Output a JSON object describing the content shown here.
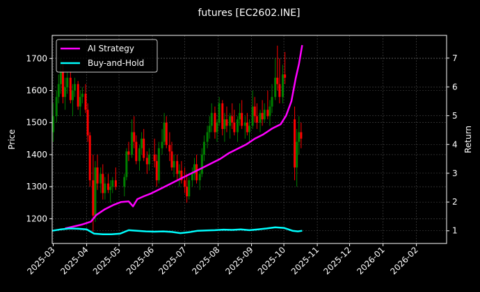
{
  "chart_data": {
    "type": "line",
    "title": "futures [EC2602.INE]",
    "ylabel": "Price",
    "y2label": "Return",
    "x_ticks": [
      "2025-03",
      "2025-04",
      "2025-05",
      "2025-06",
      "2025-07",
      "2025-08",
      "2025-09",
      "2025-10",
      "2025-11",
      "2025-12",
      "2026-01",
      "2026-02"
    ],
    "xlim": [
      "2025-02-28",
      "2026-03-01"
    ],
    "ylim": [
      1123,
      1772
    ],
    "y_ticks": [
      1200,
      1300,
      1400,
      1500,
      1600,
      1700
    ],
    "y2lim": [
      0.56,
      7.79
    ],
    "y2_ticks": [
      1,
      2,
      3,
      4,
      5,
      6,
      7
    ],
    "grid": true,
    "legend": "top-left",
    "candle_colors": {
      "up": "#008000",
      "down": "#ff0000"
    },
    "candles_ohlc": {
      "description_keys": [
        "date",
        "open",
        "high",
        "low",
        "close"
      ],
      "points": [
        [
          "2025-03-01",
          1470,
          1560,
          1440,
          1520
        ],
        [
          "2025-03-04",
          1520,
          1600,
          1500,
          1580
        ],
        [
          "2025-03-06",
          1580,
          1650,
          1560,
          1620
        ],
        [
          "2025-03-08",
          1620,
          1700,
          1590,
          1660
        ],
        [
          "2025-03-10",
          1660,
          1690,
          1560,
          1580
        ],
        [
          "2025-03-12",
          1580,
          1640,
          1540,
          1610
        ],
        [
          "2025-03-14",
          1610,
          1660,
          1590,
          1640
        ],
        [
          "2025-03-17",
          1640,
          1660,
          1560,
          1570
        ],
        [
          "2025-03-19",
          1570,
          1620,
          1520,
          1600
        ],
        [
          "2025-03-21",
          1600,
          1640,
          1580,
          1620
        ],
        [
          "2025-03-24",
          1620,
          1630,
          1540,
          1550
        ],
        [
          "2025-03-26",
          1550,
          1600,
          1520,
          1580
        ],
        [
          "2025-03-28",
          1580,
          1610,
          1560,
          1590
        ],
        [
          "2025-03-31",
          1590,
          1620,
          1530,
          1540
        ],
        [
          "2025-04-02",
          1540,
          1560,
          1440,
          1460
        ],
        [
          "2025-04-04",
          1460,
          1470,
          1300,
          1320
        ],
        [
          "2025-04-07",
          1320,
          1400,
          1160,
          1210
        ],
        [
          "2025-04-09",
          1210,
          1380,
          1190,
          1360
        ],
        [
          "2025-04-11",
          1360,
          1400,
          1290,
          1310
        ],
        [
          "2025-04-14",
          1310,
          1360,
          1280,
          1340
        ],
        [
          "2025-04-16",
          1340,
          1370,
          1260,
          1280
        ],
        [
          "2025-04-18",
          1280,
          1330,
          1260,
          1310
        ],
        [
          "2025-04-21",
          1310,
          1340,
          1280,
          1290
        ],
        [
          "2025-04-23",
          1290,
          1320,
          1250,
          1300
        ],
        [
          "2025-04-25",
          1300,
          1330,
          1280,
          1320
        ],
        [
          "2025-04-28",
          1320,
          1360,
          1290,
          1300
        ],
        [
          "2025-05-06",
          1300,
          1340,
          1270,
          1330
        ],
        [
          "2025-05-08",
          1330,
          1420,
          1320,
          1410
        ],
        [
          "2025-05-10",
          1410,
          1440,
          1380,
          1400
        ],
        [
          "2025-05-13",
          1400,
          1510,
          1390,
          1470
        ],
        [
          "2025-05-15",
          1470,
          1520,
          1420,
          1440
        ],
        [
          "2025-05-17",
          1440,
          1460,
          1370,
          1380
        ],
        [
          "2025-05-20",
          1380,
          1430,
          1350,
          1420
        ],
        [
          "2025-05-22",
          1420,
          1470,
          1400,
          1450
        ],
        [
          "2025-05-24",
          1450,
          1480,
          1380,
          1390
        ],
        [
          "2025-05-27",
          1390,
          1410,
          1340,
          1370
        ],
        [
          "2025-05-29",
          1370,
          1420,
          1350,
          1400
        ],
        [
          "2025-06-03",
          1400,
          1450,
          1360,
          1380
        ],
        [
          "2025-06-05",
          1380,
          1400,
          1300,
          1320
        ],
        [
          "2025-06-07",
          1320,
          1440,
          1310,
          1420
        ],
        [
          "2025-06-10",
          1420,
          1480,
          1400,
          1440
        ],
        [
          "2025-06-12",
          1440,
          1530,
          1430,
          1500
        ],
        [
          "2025-06-14",
          1500,
          1520,
          1420,
          1430
        ],
        [
          "2025-06-17",
          1430,
          1470,
          1380,
          1410
        ],
        [
          "2025-06-19",
          1410,
          1440,
          1350,
          1360
        ],
        [
          "2025-06-21",
          1360,
          1400,
          1330,
          1380
        ],
        [
          "2025-06-24",
          1380,
          1400,
          1320,
          1340
        ],
        [
          "2025-06-26",
          1340,
          1370,
          1300,
          1350
        ],
        [
          "2025-06-28",
          1350,
          1380,
          1310,
          1320
        ],
        [
          "2025-07-01",
          1320,
          1360,
          1280,
          1300
        ],
        [
          "2025-07-03",
          1300,
          1340,
          1250,
          1270
        ],
        [
          "2025-07-05",
          1270,
          1330,
          1260,
          1320
        ],
        [
          "2025-07-08",
          1320,
          1360,
          1300,
          1340
        ],
        [
          "2025-07-10",
          1340,
          1390,
          1320,
          1370
        ],
        [
          "2025-07-12",
          1370,
          1400,
          1310,
          1320
        ],
        [
          "2025-07-15",
          1320,
          1350,
          1290,
          1340
        ],
        [
          "2025-07-17",
          1340,
          1420,
          1330,
          1400
        ],
        [
          "2025-07-19",
          1400,
          1460,
          1380,
          1440
        ],
        [
          "2025-07-22",
          1440,
          1490,
          1420,
          1470
        ],
        [
          "2025-07-24",
          1470,
          1520,
          1450,
          1490
        ],
        [
          "2025-07-26",
          1490,
          1560,
          1470,
          1530
        ],
        [
          "2025-07-29",
          1530,
          1550,
          1450,
          1470
        ],
        [
          "2025-07-31",
          1470,
          1510,
          1440,
          1500
        ],
        [
          "2025-08-02",
          1500,
          1580,
          1490,
          1560
        ],
        [
          "2025-08-05",
          1560,
          1570,
          1460,
          1480
        ],
        [
          "2025-08-07",
          1480,
          1530,
          1440,
          1510
        ],
        [
          "2025-08-09",
          1510,
          1550,
          1470,
          1490
        ],
        [
          "2025-08-12",
          1490,
          1530,
          1450,
          1520
        ],
        [
          "2025-08-14",
          1520,
          1560,
          1480,
          1500
        ],
        [
          "2025-08-16",
          1500,
          1540,
          1460,
          1470
        ],
        [
          "2025-08-19",
          1470,
          1520,
          1440,
          1510
        ],
        [
          "2025-08-21",
          1510,
          1560,
          1490,
          1530
        ],
        [
          "2025-08-23",
          1530,
          1570,
          1480,
          1490
        ],
        [
          "2025-08-26",
          1490,
          1520,
          1450,
          1500
        ],
        [
          "2025-08-28",
          1500,
          1530,
          1460,
          1470
        ],
        [
          "2025-08-30",
          1470,
          1510,
          1440,
          1490
        ],
        [
          "2025-09-02",
          1490,
          1600,
          1480,
          1550
        ],
        [
          "2025-09-04",
          1550,
          1580,
          1500,
          1520
        ],
        [
          "2025-09-06",
          1520,
          1560,
          1480,
          1500
        ],
        [
          "2025-09-09",
          1500,
          1540,
          1470,
          1530
        ],
        [
          "2025-09-11",
          1530,
          1570,
          1490,
          1510
        ],
        [
          "2025-09-13",
          1510,
          1560,
          1500,
          1540
        ],
        [
          "2025-09-16",
          1540,
          1600,
          1510,
          1520
        ],
        [
          "2025-09-18",
          1520,
          1570,
          1490,
          1550
        ],
        [
          "2025-09-20",
          1550,
          1620,
          1530,
          1580
        ],
        [
          "2025-09-23",
          1580,
          1700,
          1570,
          1640
        ],
        [
          "2025-09-25",
          1640,
          1740,
          1600,
          1620
        ],
        [
          "2025-09-27",
          1620,
          1700,
          1560,
          1580
        ],
        [
          "2025-09-30",
          1580,
          1680,
          1560,
          1650
        ],
        [
          "2025-10-02",
          1650,
          1720,
          1620,
          1640
        ],
        [
          "2025-10-11",
          1510,
          1550,
          1320,
          1360
        ],
        [
          "2025-10-13",
          1360,
          1480,
          1300,
          1440
        ],
        [
          "2025-10-15",
          1440,
          1520,
          1400,
          1470
        ],
        [
          "2025-10-17",
          1470,
          1500,
          1420,
          1450
        ]
      ]
    },
    "series": [
      {
        "name": "AI Strategy",
        "color": "#ff00ff",
        "axis": "right",
        "x": [
          "2025-03-12",
          "2025-03-20",
          "2025-03-28",
          "2025-04-05",
          "2025-04-10",
          "2025-04-18",
          "2025-04-26",
          "2025-05-03",
          "2025-05-10",
          "2025-05-14",
          "2025-05-18",
          "2025-05-24",
          "2025-05-31",
          "2025-06-08",
          "2025-06-16",
          "2025-06-24",
          "2025-07-02",
          "2025-07-10",
          "2025-07-18",
          "2025-07-26",
          "2025-08-03",
          "2025-08-11",
          "2025-08-19",
          "2025-08-27",
          "2025-09-04",
          "2025-09-12",
          "2025-09-20",
          "2025-09-28",
          "2025-10-03",
          "2025-10-08",
          "2025-10-12",
          "2025-10-15",
          "2025-10-18"
        ],
        "y": [
          1.08,
          1.15,
          1.22,
          1.32,
          1.55,
          1.75,
          1.9,
          2.0,
          2.02,
          1.85,
          2.1,
          2.2,
          2.3,
          2.45,
          2.6,
          2.75,
          2.9,
          3.05,
          3.2,
          3.35,
          3.5,
          3.7,
          3.85,
          4.0,
          4.2,
          4.35,
          4.55,
          4.7,
          5.0,
          5.5,
          6.3,
          6.8,
          7.45
        ]
      },
      {
        "name": "Buy-and-Hold",
        "color": "#00ffff",
        "axis": "right",
        "x": [
          "2025-02-28",
          "2025-03-08",
          "2025-03-16",
          "2025-03-24",
          "2025-04-01",
          "2025-04-08",
          "2025-04-16",
          "2025-04-24",
          "2025-05-02",
          "2025-05-10",
          "2025-05-18",
          "2025-05-26",
          "2025-06-03",
          "2025-06-11",
          "2025-06-19",
          "2025-06-27",
          "2025-07-05",
          "2025-07-13",
          "2025-07-21",
          "2025-07-29",
          "2025-08-06",
          "2025-08-14",
          "2025-08-22",
          "2025-08-30",
          "2025-09-07",
          "2025-09-15",
          "2025-09-23",
          "2025-10-01",
          "2025-10-09",
          "2025-10-14",
          "2025-10-18"
        ],
        "y": [
          1.0,
          1.05,
          1.08,
          1.07,
          1.05,
          0.9,
          0.88,
          0.88,
          0.9,
          1.02,
          1.0,
          0.98,
          0.97,
          0.98,
          0.96,
          0.92,
          0.95,
          1.0,
          1.01,
          1.02,
          1.04,
          1.03,
          1.05,
          1.02,
          1.05,
          1.08,
          1.12,
          1.1,
          1.0,
          0.98,
          1.0
        ]
      }
    ]
  }
}
